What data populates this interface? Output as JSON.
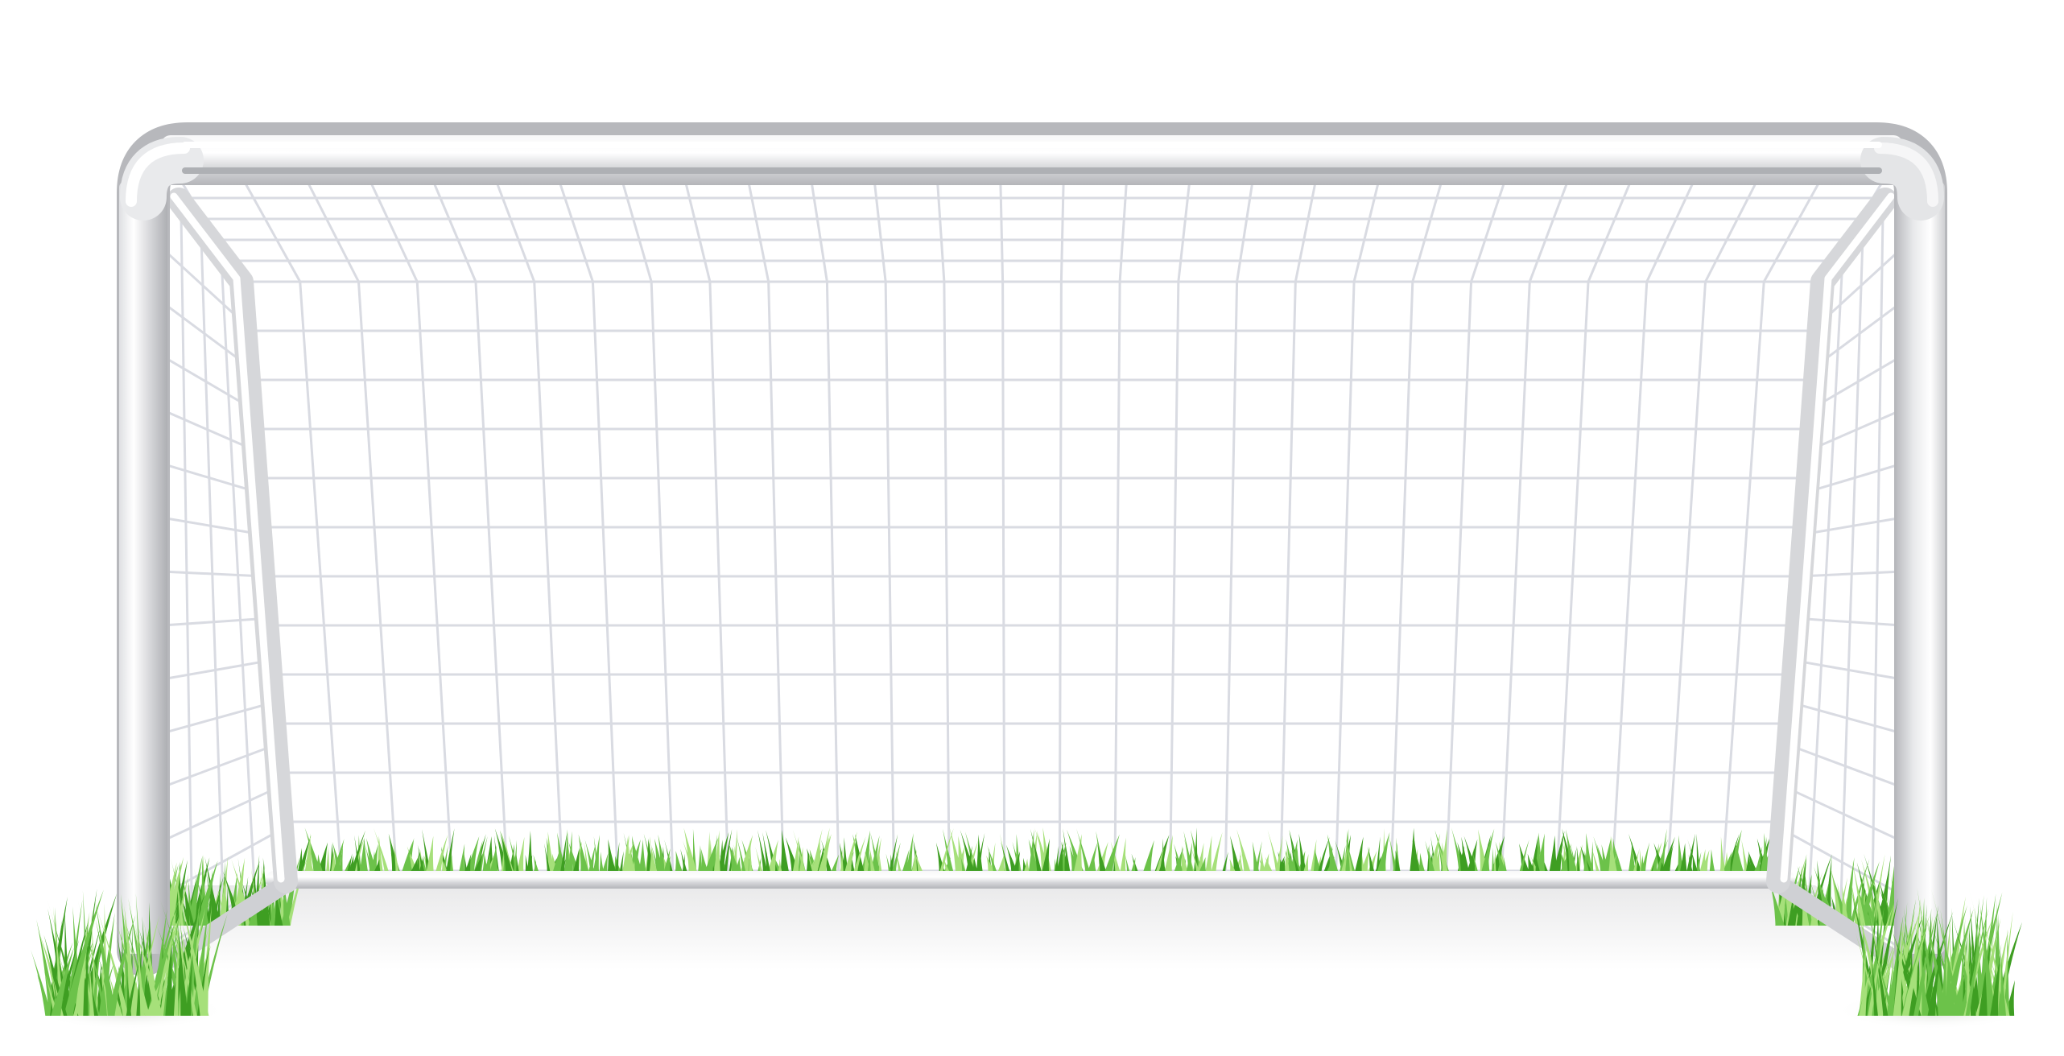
{
  "scene": {
    "subject": "soccer-goal",
    "colors": {
      "background": "#ffffff",
      "floor_shadow": "#eeeeee",
      "frame_light": "#fbfbfb",
      "frame_mid": "#e2e3e5",
      "frame_dark": "#b9babd",
      "net": "#d9dbe2",
      "grass_dark": "#3e9e22",
      "grass_mid": "#6cc24a",
      "grass_light": "#a6e07a"
    },
    "elements": [
      "crossbar",
      "left-post",
      "right-post",
      "left-back-stanchion",
      "right-back-stanchion",
      "ground-bar",
      "back-net",
      "left-side-net",
      "right-side-net",
      "grass-strip",
      "left-grass-tuft",
      "right-grass-tuft"
    ]
  }
}
